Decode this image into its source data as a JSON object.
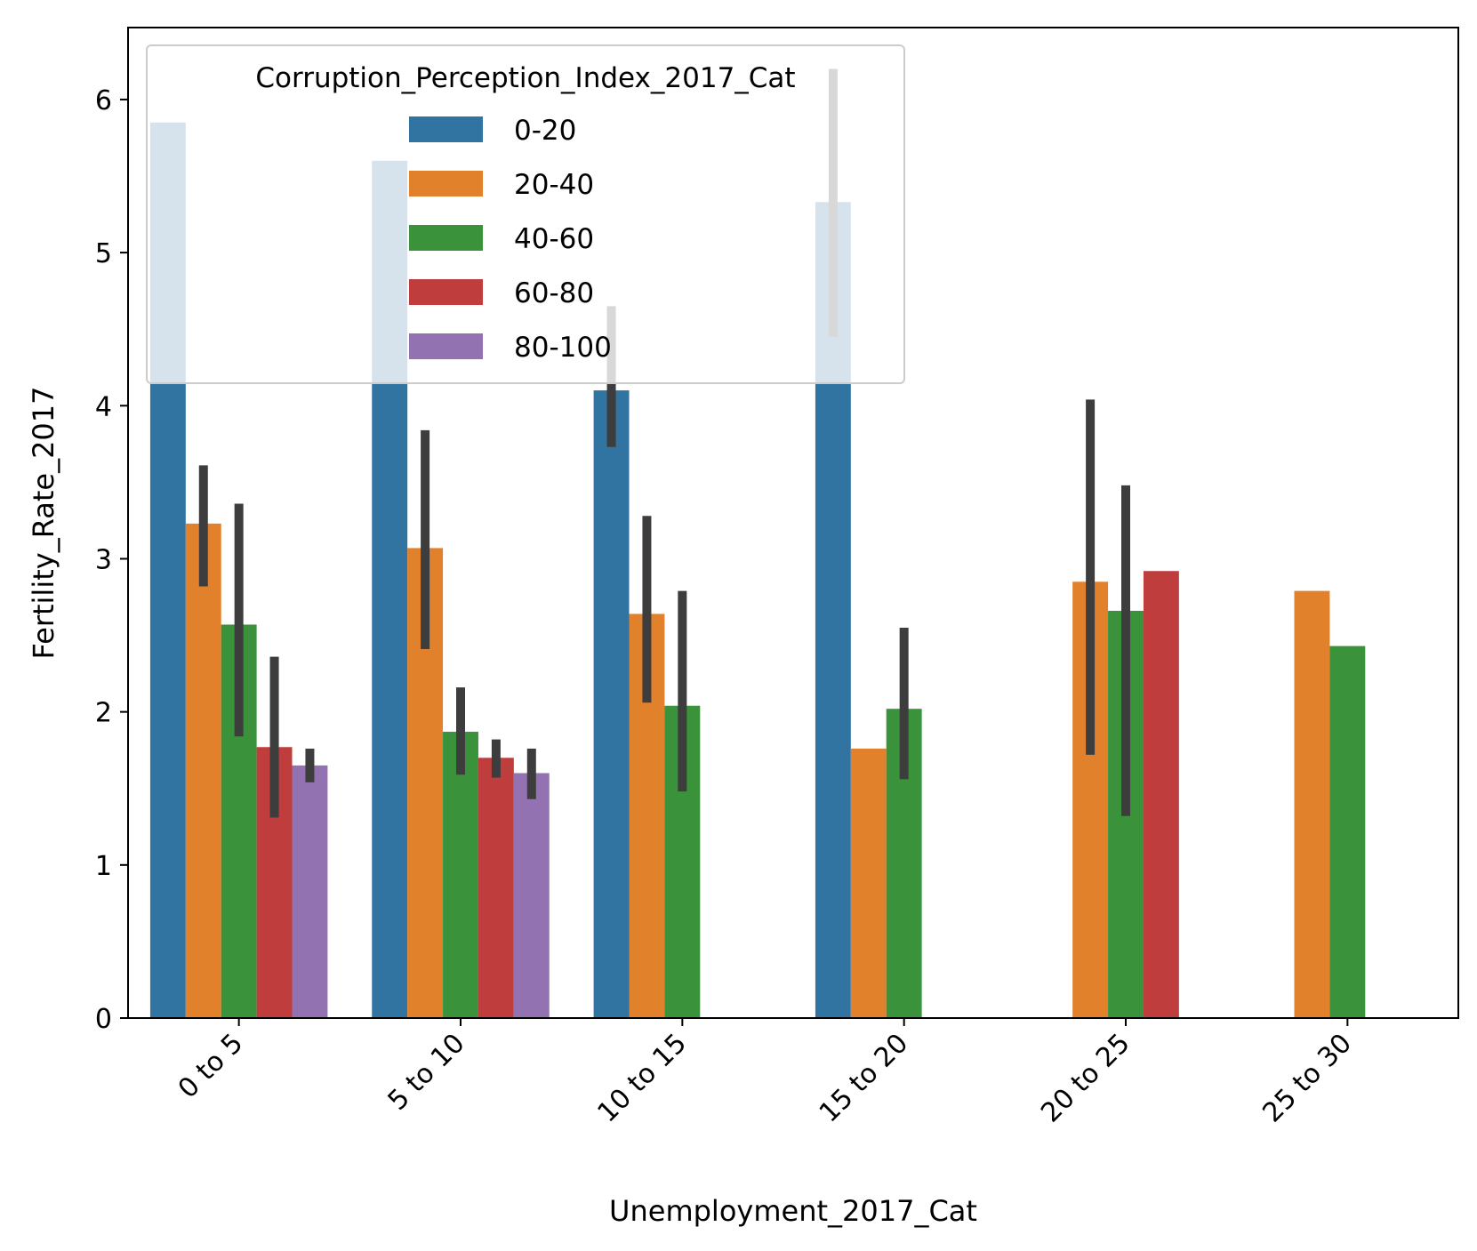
{
  "chart_data": {
    "type": "bar",
    "xlabel": "Unemployment_2017_Cat",
    "ylabel": "Fertility_Rate_2017",
    "ylim": [
      0,
      6.47
    ],
    "yticks": [
      0,
      1,
      2,
      3,
      4,
      5,
      6
    ],
    "categories": [
      "0 to 5",
      "5 to 10",
      "10 to 15",
      "15 to 20",
      "20 to 25",
      "25 to 30"
    ],
    "legend": {
      "title": "Corruption_Perception_Index_2017_Cat",
      "placement": "upper-left"
    },
    "grid": false,
    "series": [
      {
        "name": "0-20",
        "color": "#3274a1",
        "values": [
          5.85,
          5.6,
          4.1,
          5.33,
          null,
          null
        ],
        "ci_low": [
          null,
          null,
          3.73,
          4.45,
          null,
          null
        ],
        "ci_high": [
          null,
          null,
          4.65,
          6.2,
          null,
          null
        ]
      },
      {
        "name": "20-40",
        "color": "#e1812c",
        "values": [
          3.23,
          3.07,
          2.64,
          1.76,
          2.85,
          2.79
        ],
        "ci_low": [
          2.82,
          2.41,
          2.06,
          null,
          1.72,
          null
        ],
        "ci_high": [
          3.61,
          3.84,
          3.28,
          null,
          4.04,
          null
        ]
      },
      {
        "name": "40-60",
        "color": "#3a923a",
        "values": [
          2.57,
          1.87,
          2.04,
          2.02,
          2.66,
          2.43
        ],
        "ci_low": [
          1.84,
          1.59,
          1.48,
          1.56,
          1.32,
          null
        ],
        "ci_high": [
          3.36,
          2.16,
          2.79,
          2.55,
          3.48,
          null
        ]
      },
      {
        "name": "60-80",
        "color": "#c03d3e",
        "values": [
          1.77,
          1.7,
          null,
          null,
          2.92,
          null
        ],
        "ci_low": [
          1.31,
          1.57,
          null,
          null,
          null,
          null
        ],
        "ci_high": [
          2.36,
          1.82,
          null,
          null,
          null,
          null
        ]
      },
      {
        "name": "80-100",
        "color": "#9372b2",
        "values": [
          1.65,
          1.6,
          null,
          null,
          null,
          null
        ],
        "ci_low": [
          1.54,
          1.43,
          null,
          null,
          null,
          null
        ],
        "ci_high": [
          1.76,
          1.76,
          null,
          null,
          null,
          null
        ]
      }
    ]
  }
}
